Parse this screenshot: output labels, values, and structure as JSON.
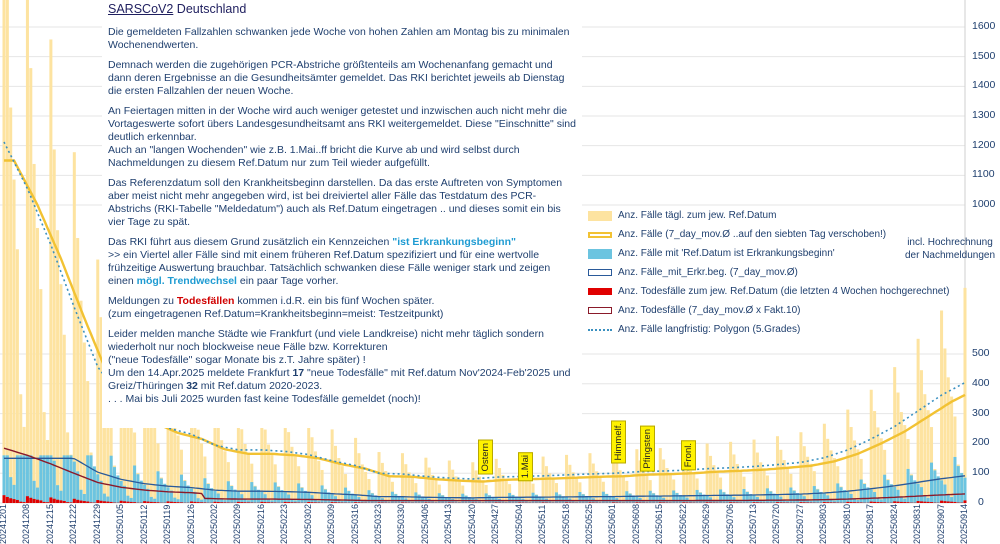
{
  "chart_data": {
    "type": "bar",
    "title": "SARSCoV2 Deutschland",
    "y_ticks_upper": [
      "1600",
      "1500",
      "1400",
      "1300",
      "1200",
      "1100",
      "1000"
    ],
    "y_ticks_lower": [
      "500",
      "400",
      "300",
      "200",
      "100",
      "0"
    ],
    "x_ticks": [
      "20241201",
      "20241208",
      "20241215",
      "20241222",
      "20241229",
      "20250105",
      "20250112",
      "20250119",
      "20250126",
      "20250202",
      "20250209",
      "20250216",
      "20250223",
      "20250302",
      "20250309",
      "20250316",
      "20250323",
      "20250330",
      "20250406",
      "20250413",
      "20250420",
      "20250427",
      "20250504",
      "20250511",
      "20250518",
      "20250525",
      "20250601",
      "20250608",
      "20250615",
      "20250622",
      "20250629",
      "20250706",
      "20250713",
      "20250720",
      "20250727",
      "20250803",
      "20250810",
      "20250817",
      "20250824",
      "20250831",
      "20250907",
      "20250914"
    ],
    "weekly_level": [
      1150,
      1000,
      820,
      620,
      430,
      330,
      270,
      235,
      215,
      180,
      165,
      165,
      160,
      150,
      130,
      115,
      90,
      88,
      80,
      75,
      72,
      78,
      80,
      82,
      85,
      88,
      90,
      95,
      97,
      100,
      105,
      108,
      112,
      118,
      125,
      140,
      165,
      200,
      240,
      290,
      340,
      380
    ],
    "annotations": [
      "Ostern",
      "1.Mai",
      "Himmelf.",
      "Pfingsten",
      "Fronl."
    ],
    "hochrechnung": [
      "incl. Hochrechnung",
      "der Nachmeldungen"
    ]
  },
  "info": {
    "title_link": "SARSCoV2",
    "title_rest": " Deutschland",
    "p1": "Die gemeldeten Fallzahlen schwanken jede Woche von hohen Zahlen am Montag bis zu minimalen Wochenendwerten.",
    "p2": "Demnach werden die zugehörigen PCR-Abstriche größtenteils am Wochenanfang gemacht und dann deren Ergebnisse an die Gesundheitsämter gemeldet. Das RKI berichtet jeweils ab Dienstag die ersten Fallzahlen der neuen Woche.",
    "p3": "An Feiertagen mitten in der Woche wird auch weniger getestet und inzwischen auch nicht mehr die Vortageswerte sofort übers Landesgesundheitsamt ans RKI weitergemeldet. Diese \"Einschnitte\" sind deutlich erkennbar.",
    "p3b": "Auch an \"langen Wochenden\" wie z.B. 1.Mai..ff bricht die Kurve ab und wird selbst durch Nachmeldungen zu diesem Ref.Datum nur zum Teil wieder aufgefüllt.",
    "p4": "Das Referenzdatum soll den Krankheitsbeginn darstellen. Da das erste Auftreten von Symptomen aber meist nicht mehr angegeben wird, ist bei dreiviertel aller Fälle das Testdatum des PCR-Abstrichs (RKI-Tabelle \"Meldedatum\") auch als Ref.Datum eingetragen .. und dieses somit ein bis vier Tage zu spät.",
    "p5a": "Das RKI führt aus diesem Grund zusätzlich ein Kennzeichen ",
    "p5b": "\"ist Erkrankungsbeginn\"",
    "p5c": ">> ein Viertel aller Fälle sind mit einem früheren Ref.Datum spezifiziert und für eine wertvolle frühzeitige Auswertung brauchbar. Tatsächlich schwanken diese Fälle weniger stark und zeigen einen ",
    "p5d": "mögl.",
    "p5e": "Trendwechsel",
    "p5f": " ein paar Tage vorher.",
    "p6a": "Meldungen zu ",
    "p6b": "Todesfällen",
    "p6c": " kommen i.d.R. ein bis fünf Wochen später.",
    "p6d": "(zum eingetragenen Ref.Datum=Krankheitsbeginn=meist: Testzeitpunkt)",
    "p7a": "Leider melden manche Städte wie Frankfurt (und viele Landkreise) nicht mehr täglich sondern wiederholt nur noch blockweise neue Fälle bzw. Korrekturen",
    "p7b": "(\"neue Todesfälle\" sogar Monate bis z.T. Jahre später) !",
    "p7c": "Um den 14.Apr.2025 meldete Frankfurt ",
    "p7d": "17",
    "p7e": " \"neue Todesfälle\" mit Ref.datum Nov'2024-Feb'2025 und Greiz/Thüringen ",
    "p7f": "32",
    "p7g": " mit Ref.datum 2020-2023.",
    "p7h": ". . .  Mai bis Juli 2025 wurden fast keine Todesfälle gemeldet (noch)!"
  },
  "legend": {
    "items": [
      {
        "label": "Anz. Fälle tägl. zum jew. Ref.Datum",
        "color": "#fde3a0"
      },
      {
        "label": "Anz. Fälle (7_day_mov.Ø ..auf den siebten Tag verschoben!)",
        "color": "#f2c233"
      },
      {
        "label": "Anz. Fälle mit 'Ref.Datum ist Erkrankungsbeginn'",
        "color": "#6cc4e0"
      },
      {
        "label": "Anz. Fälle_mit_Erkr.beg. (7_day_mov.Ø)",
        "color": "#2a5a9a"
      },
      {
        "label": "Anz. Todesfälle zum jew. Ref.Datum (die letzten 4 Wochen hochgerechnet)",
        "color": "#e00000"
      },
      {
        "label": "Anz. Todesfälle (7_day_mov.Ø x Fakt.10)",
        "color": "#8a1a2a"
      },
      {
        "label": "Anz. Fälle langfristig: Polygon (5.Grades)",
        "color": "#3a90c0"
      }
    ]
  }
}
